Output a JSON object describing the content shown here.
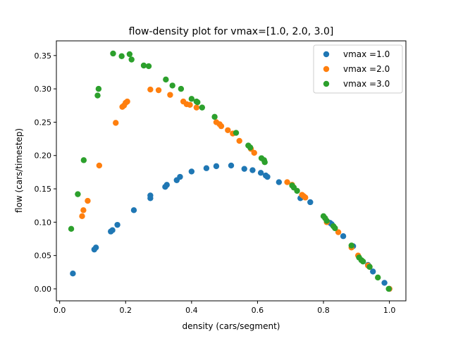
{
  "chart_data": {
    "type": "scatter",
    "title": "flow-density plot for vmax=[1.0, 2.0, 3.0]",
    "xlabel": "density (cars/segment)",
    "ylabel": "flow (cars/timestep)",
    "xlim": [
      -0.01,
      1.05
    ],
    "ylim": [
      -0.018,
      0.372
    ],
    "xticks": [
      0.0,
      0.2,
      0.4,
      0.6,
      0.8,
      1.0
    ],
    "xtick_labels": [
      "0.0",
      "0.2",
      "0.4",
      "0.6",
      "0.8",
      "1.0"
    ],
    "yticks": [
      0.0,
      0.05,
      0.1,
      0.15,
      0.2,
      0.25,
      0.3,
      0.35
    ],
    "ytick_labels": [
      "0.00",
      "0.05",
      "0.10",
      "0.15",
      "0.20",
      "0.25",
      "0.30",
      "0.35"
    ],
    "grid": false,
    "legend_position": "top-right",
    "series": [
      {
        "name": "vmax =1.0",
        "color": "#1f77b4",
        "points": [
          [
            0.04,
            0.023
          ],
          [
            0.105,
            0.059
          ],
          [
            0.11,
            0.062
          ],
          [
            0.155,
            0.086
          ],
          [
            0.16,
            0.088
          ],
          [
            0.175,
            0.096
          ],
          [
            0.225,
            0.118
          ],
          [
            0.275,
            0.136
          ],
          [
            0.275,
            0.14
          ],
          [
            0.32,
            0.153
          ],
          [
            0.325,
            0.156
          ],
          [
            0.355,
            0.163
          ],
          [
            0.365,
            0.168
          ],
          [
            0.4,
            0.176
          ],
          [
            0.445,
            0.181
          ],
          [
            0.475,
            0.184
          ],
          [
            0.52,
            0.185
          ],
          [
            0.56,
            0.18
          ],
          [
            0.585,
            0.178
          ],
          [
            0.61,
            0.174
          ],
          [
            0.625,
            0.17
          ],
          [
            0.63,
            0.168
          ],
          [
            0.665,
            0.16
          ],
          [
            0.73,
            0.136
          ],
          [
            0.735,
            0.138
          ],
          [
            0.76,
            0.13
          ],
          [
            0.82,
            0.099
          ],
          [
            0.825,
            0.097
          ],
          [
            0.86,
            0.079
          ],
          [
            0.89,
            0.064
          ],
          [
            0.935,
            0.036
          ],
          [
            0.95,
            0.026
          ],
          [
            0.985,
            0.009
          ],
          [
            1.0,
            0.0
          ]
        ]
      },
      {
        "name": "vmax =2.0",
        "color": "#ff7f0e",
        "points": [
          [
            0.068,
            0.109
          ],
          [
            0.072,
            0.118
          ],
          [
            0.085,
            0.132
          ],
          [
            0.12,
            0.185
          ],
          [
            0.17,
            0.249
          ],
          [
            0.19,
            0.273
          ],
          [
            0.195,
            0.275
          ],
          [
            0.2,
            0.279
          ],
          [
            0.205,
            0.281
          ],
          [
            0.275,
            0.299
          ],
          [
            0.3,
            0.298
          ],
          [
            0.335,
            0.291
          ],
          [
            0.375,
            0.281
          ],
          [
            0.385,
            0.277
          ],
          [
            0.395,
            0.276
          ],
          [
            0.415,
            0.272
          ],
          [
            0.475,
            0.25
          ],
          [
            0.485,
            0.247
          ],
          [
            0.49,
            0.244
          ],
          [
            0.51,
            0.238
          ],
          [
            0.525,
            0.233
          ],
          [
            0.545,
            0.222
          ],
          [
            0.58,
            0.21
          ],
          [
            0.59,
            0.204
          ],
          [
            0.69,
            0.16
          ],
          [
            0.705,
            0.156
          ],
          [
            0.735,
            0.141
          ],
          [
            0.74,
            0.139
          ],
          [
            0.745,
            0.137
          ],
          [
            0.81,
            0.1
          ],
          [
            0.845,
            0.085
          ],
          [
            0.885,
            0.062
          ],
          [
            0.905,
            0.05
          ],
          [
            0.935,
            0.035
          ],
          [
            0.94,
            0.033
          ],
          [
            1.0,
            0.0
          ]
        ]
      },
      {
        "name": "vmax =3.0",
        "color": "#2ca02c",
        "points": [
          [
            0.035,
            0.09
          ],
          [
            0.055,
            0.142
          ],
          [
            0.073,
            0.193
          ],
          [
            0.115,
            0.29
          ],
          [
            0.118,
            0.3
          ],
          [
            0.162,
            0.353
          ],
          [
            0.188,
            0.349
          ],
          [
            0.212,
            0.352
          ],
          [
            0.218,
            0.344
          ],
          [
            0.255,
            0.335
          ],
          [
            0.27,
            0.334
          ],
          [
            0.322,
            0.314
          ],
          [
            0.342,
            0.305
          ],
          [
            0.368,
            0.3
          ],
          [
            0.4,
            0.285
          ],
          [
            0.415,
            0.281
          ],
          [
            0.418,
            0.28
          ],
          [
            0.432,
            0.272
          ],
          [
            0.47,
            0.258
          ],
          [
            0.535,
            0.234
          ],
          [
            0.572,
            0.215
          ],
          [
            0.578,
            0.212
          ],
          [
            0.612,
            0.196
          ],
          [
            0.62,
            0.193
          ],
          [
            0.622,
            0.19
          ],
          [
            0.705,
            0.155
          ],
          [
            0.71,
            0.152
          ],
          [
            0.72,
            0.147
          ],
          [
            0.8,
            0.109
          ],
          [
            0.805,
            0.106
          ],
          [
            0.81,
            0.102
          ],
          [
            0.83,
            0.094
          ],
          [
            0.835,
            0.091
          ],
          [
            0.885,
            0.065
          ],
          [
            0.908,
            0.047
          ],
          [
            0.915,
            0.043
          ],
          [
            0.92,
            0.041
          ],
          [
            0.94,
            0.033
          ],
          [
            0.965,
            0.017
          ],
          [
            0.998,
            0.0
          ]
        ]
      }
    ]
  }
}
